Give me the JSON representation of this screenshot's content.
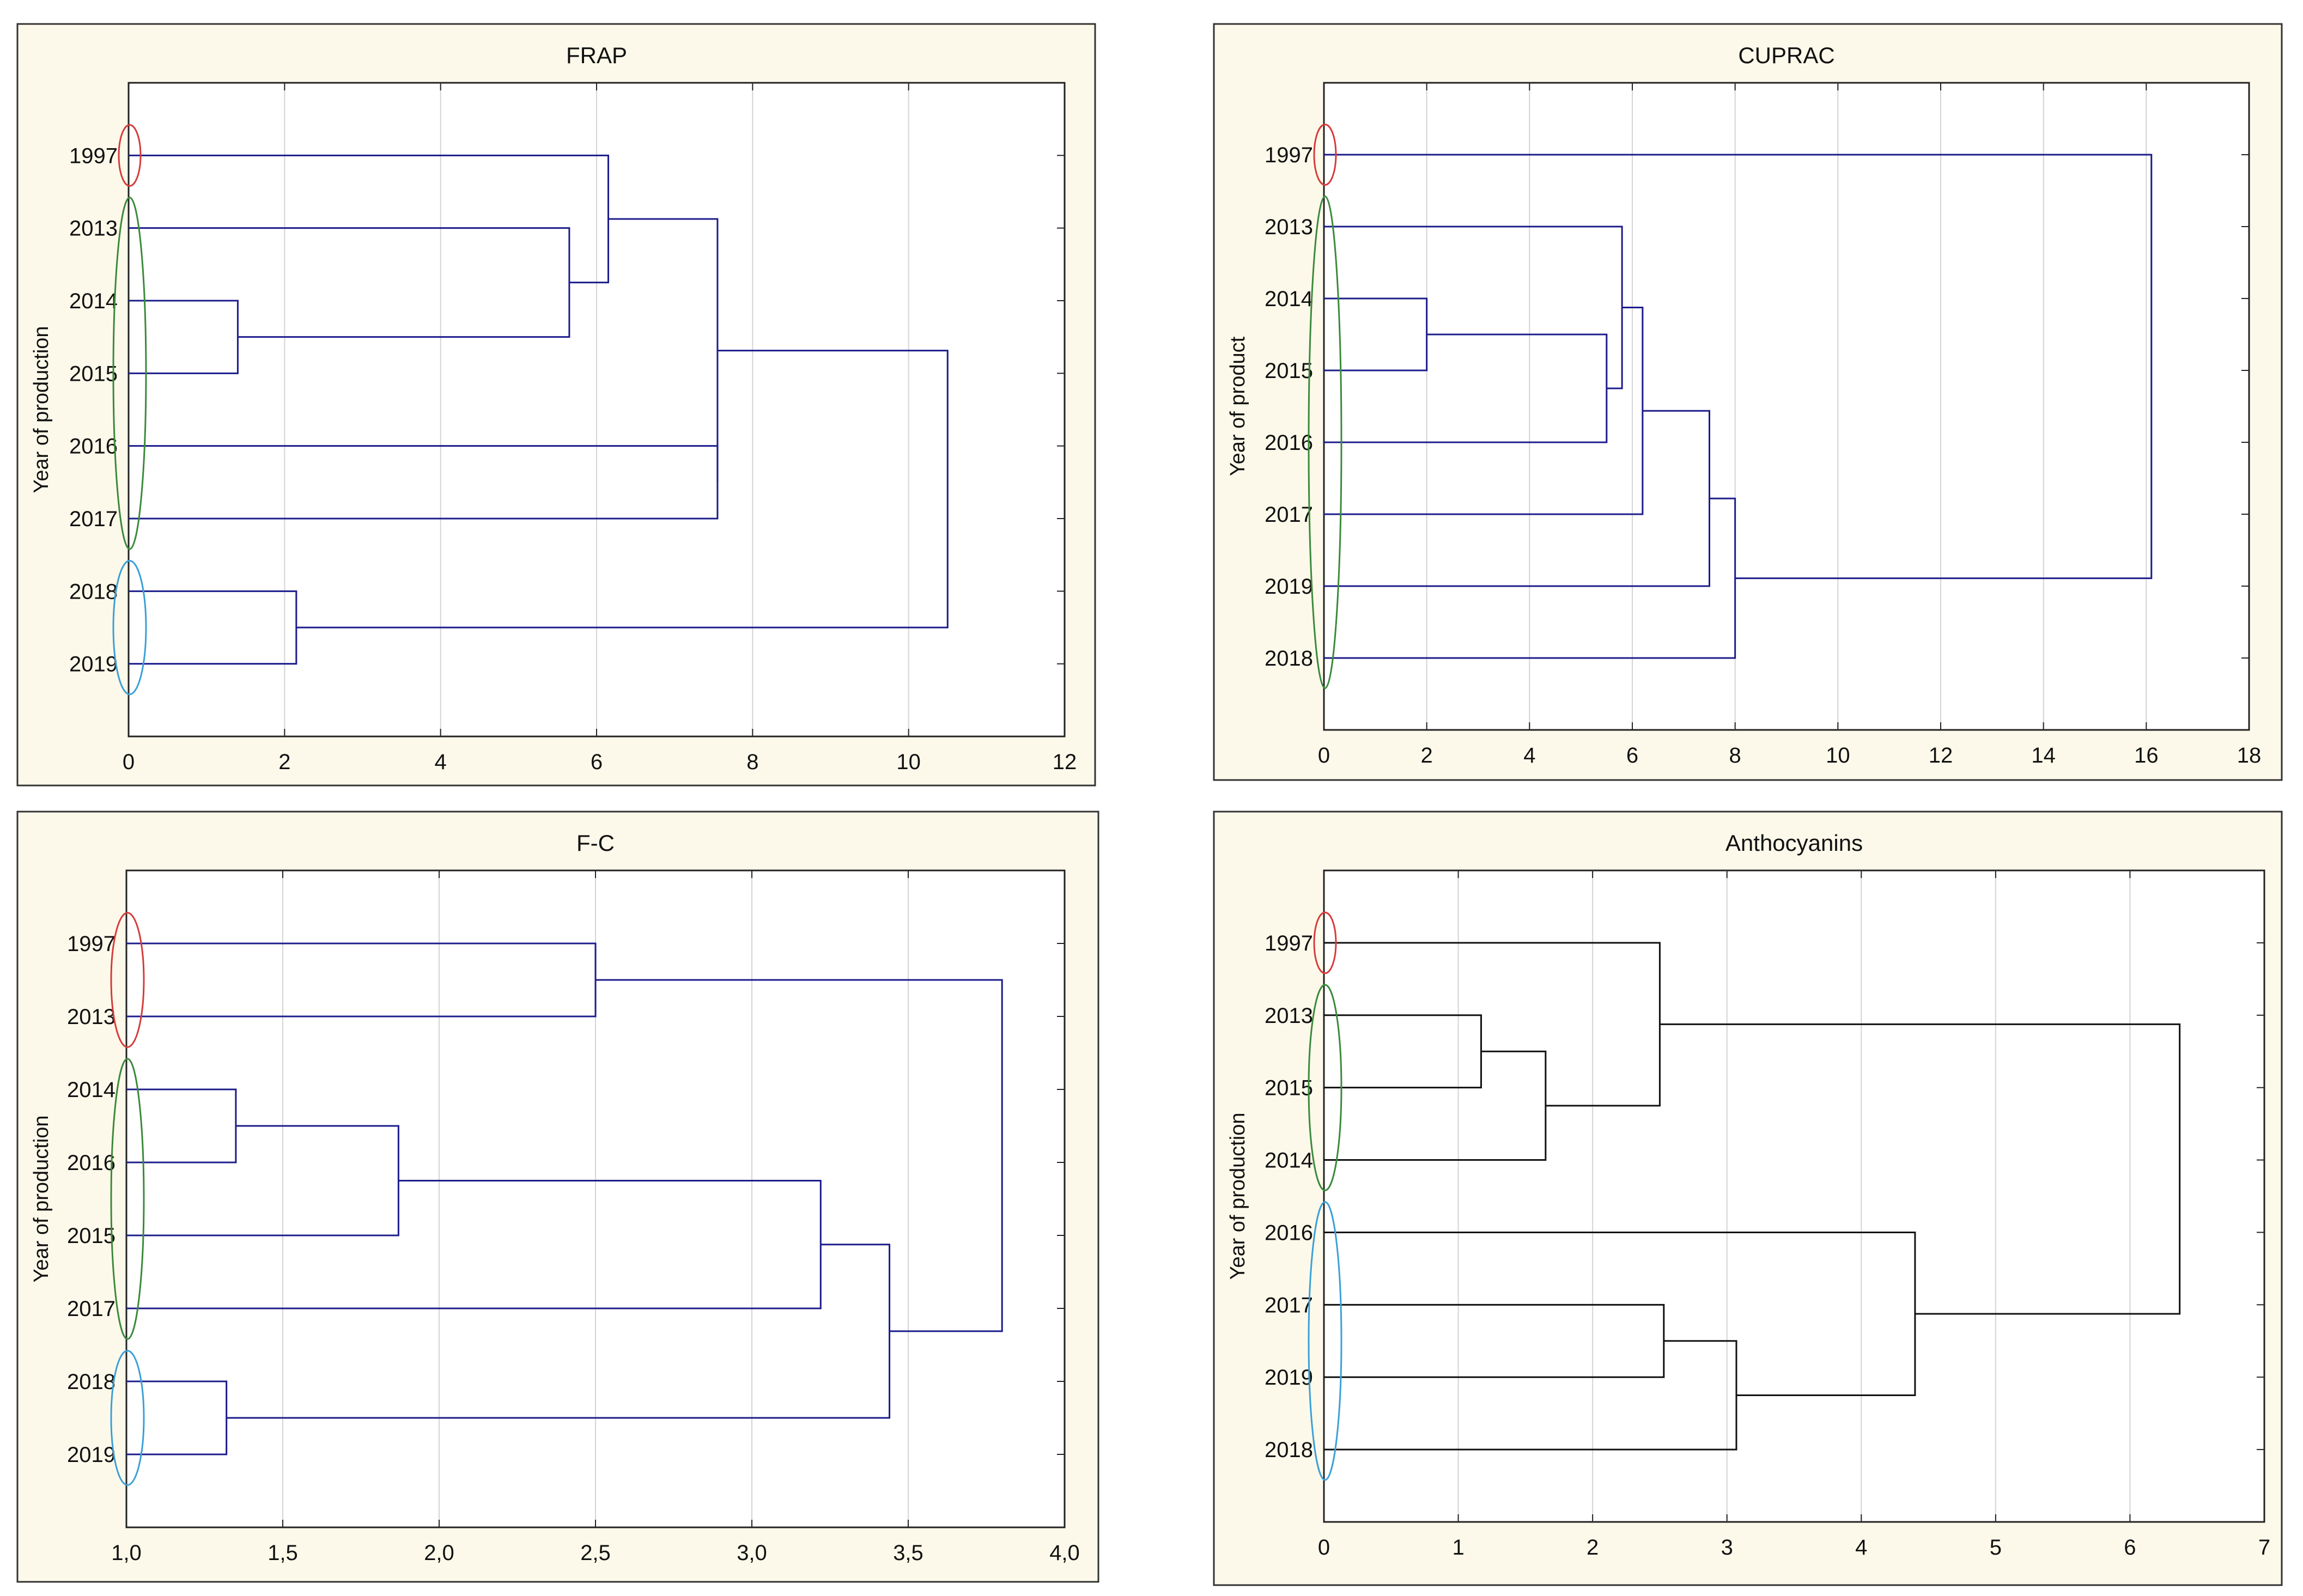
{
  "chart_data": [
    {
      "type": "dendrogram",
      "title": "FRAP",
      "ylabel": "Year of production",
      "xlabel": "",
      "xlim": [
        0,
        12
      ],
      "xticks": [
        "0",
        "2",
        "4",
        "6",
        "8",
        "10",
        "12"
      ],
      "labels": [
        "1997",
        "2013",
        "2014",
        "2015",
        "2016",
        "2017",
        "2018",
        "2019"
      ],
      "line_color": "#1c1c8c",
      "leaf_groups": [
        {
          "from": 0,
          "to": 0,
          "color": "#d63b3b"
        },
        {
          "from": 1,
          "to": 5,
          "color": "#3a8a3a"
        },
        {
          "from": 6,
          "to": 7,
          "color": "#3aa0d8"
        }
      ],
      "merges": [
        {
          "left": 2,
          "right": 3,
          "height": 1.4
        },
        {
          "left": 1,
          "right": 8,
          "height": 5.65
        },
        {
          "left": 0,
          "right": 9,
          "height": 6.15
        },
        {
          "left": 6,
          "right": 7,
          "height": 2.15
        },
        {
          "left": 4,
          "right": 5,
          "height": 7.55
        },
        {
          "left": 10,
          "right": 12,
          "height": 7.55
        },
        {
          "left": 13,
          "right": 11,
          "height": 10.5
        }
      ]
    },
    {
      "type": "dendrogram",
      "title": "CUPRAC",
      "ylabel": "Year of product",
      "xlabel": "",
      "xlim": [
        0,
        18
      ],
      "xticks": [
        "0",
        "2",
        "4",
        "6",
        "8",
        "10",
        "12",
        "14",
        "16",
        "18"
      ],
      "labels": [
        "1997",
        "2013",
        "2014",
        "2015",
        "2016",
        "2017",
        "2019",
        "2018"
      ],
      "line_color": "#1c1c8c",
      "leaf_groups": [
        {
          "from": 0,
          "to": 0,
          "color": "#d63b3b"
        },
        {
          "from": 1,
          "to": 7,
          "color": "#3a8a3a"
        }
      ],
      "merges": [
        {
          "left": 2,
          "right": 3,
          "height": 2.0
        },
        {
          "left": 8,
          "right": 4,
          "height": 5.5
        },
        {
          "left": 1,
          "right": 9,
          "height": 5.8
        },
        {
          "left": 10,
          "right": 5,
          "height": 6.2
        },
        {
          "left": 11,
          "right": 6,
          "height": 7.5
        },
        {
          "left": 12,
          "right": 7,
          "height": 8.0
        },
        {
          "left": 0,
          "right": 13,
          "height": 16.1
        }
      ]
    },
    {
      "type": "dendrogram",
      "title": "F-C",
      "ylabel": "Year of production",
      "xlabel": "",
      "xlim": [
        1.0,
        4.0
      ],
      "xticks": [
        "1,0",
        "1,5",
        "2,0",
        "2,5",
        "3,0",
        "3,5",
        "4,0"
      ],
      "labels": [
        "1997",
        "2013",
        "2014",
        "2016",
        "2015",
        "2017",
        "2018",
        "2019"
      ],
      "line_color": "#1c1c8c",
      "leaf_groups": [
        {
          "from": 0,
          "to": 1,
          "color": "#d63b3b"
        },
        {
          "from": 2,
          "to": 5,
          "color": "#3a8a3a"
        },
        {
          "from": 6,
          "to": 7,
          "color": "#3aa0d8"
        }
      ],
      "merges": [
        {
          "left": 0,
          "right": 1,
          "height": 2.5
        },
        {
          "left": 2,
          "right": 3,
          "height": 1.35
        },
        {
          "left": 9,
          "right": 4,
          "height": 1.87
        },
        {
          "left": 10,
          "right": 5,
          "height": 3.22
        },
        {
          "left": 6,
          "right": 7,
          "height": 1.32
        },
        {
          "left": 11,
          "right": 12,
          "height": 3.44
        },
        {
          "left": 8,
          "right": 13,
          "height": 3.8
        }
      ]
    },
    {
      "type": "dendrogram",
      "title": "Anthocyanins",
      "ylabel": "Year of production",
      "xlabel": "",
      "xlim": [
        0,
        7
      ],
      "xticks": [
        "0",
        "1",
        "2",
        "3",
        "4",
        "5",
        "6",
        "7"
      ],
      "labels": [
        "1997",
        "2013",
        "2015",
        "2014",
        "2016",
        "2017",
        "2019",
        "2018"
      ],
      "line_color": "#111111",
      "leaf_groups": [
        {
          "from": 0,
          "to": 0,
          "color": "#d63b3b"
        },
        {
          "from": 1,
          "to": 3,
          "color": "#3a8a3a"
        },
        {
          "from": 4,
          "to": 7,
          "color": "#3aa0d8"
        }
      ],
      "merges": [
        {
          "left": 1,
          "right": 2,
          "height": 1.17
        },
        {
          "left": 8,
          "right": 3,
          "height": 1.65
        },
        {
          "left": 0,
          "right": 9,
          "height": 2.5
        },
        {
          "left": 5,
          "right": 6,
          "height": 2.53
        },
        {
          "left": 11,
          "right": 7,
          "height": 3.07
        },
        {
          "left": 4,
          "right": 12,
          "height": 4.4
        },
        {
          "left": 10,
          "right": 13,
          "height": 6.37
        }
      ]
    }
  ]
}
